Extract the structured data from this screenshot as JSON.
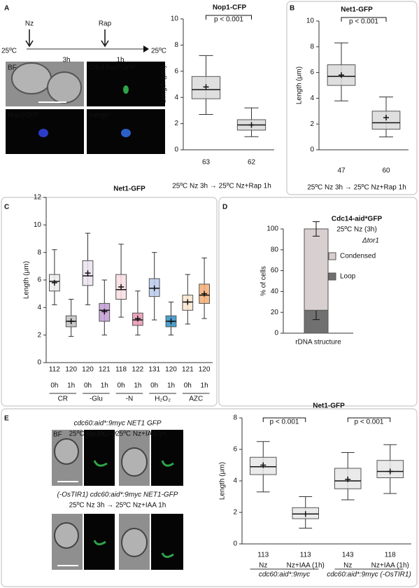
{
  "panels": {
    "letters": [
      "A",
      "B",
      "C",
      "D",
      "E"
    ],
    "a": {
      "timeline": [
        "Nz",
        "Rap",
        "25ºC",
        "3h",
        "1h",
        "25ºC"
      ],
      "tiles": [
        "BF",
        "Cdc14aid*GFP",
        "Nop1CFP",
        "merge"
      ]
    },
    "e": {
      "strain1": "cdc60:aid*:9myc NET1 GFP",
      "cond1": "25ºC Nz 3h → 25ºC Nz+IAA 1h",
      "tiles": [
        "BF",
        "Net1 GFP"
      ],
      "strain2": "(-OsTIR1) cdc60:aid*:9myc NET1-GFP",
      "cond2": "25ºC Nz 3h → 25ºC Nz+IAA 1h"
    }
  },
  "chart_data": [
    {
      "type": "box",
      "title": "Nop1-CFP",
      "title_color": "#3b8fc7",
      "ylabel": "Length (μm)",
      "xlabel": "25ºC Nz 3h → 25ºC Nz+Rap 1h",
      "ylim": [
        0,
        10
      ],
      "yticks": [
        0,
        2,
        4,
        6,
        8,
        10
      ],
      "color": "#d9d9d9",
      "boxes": [
        {
          "low": 2.7,
          "q1": 3.9,
          "median": 4.6,
          "q3": 5.6,
          "high": 7.2,
          "mean": 4.8
        },
        {
          "low": 1.0,
          "q1": 1.5,
          "median": 1.9,
          "q3": 2.3,
          "high": 3.2,
          "mean": 1.9
        }
      ],
      "n": [
        63,
        62
      ],
      "annotations": [
        "p < 0.001"
      ]
    },
    {
      "type": "box",
      "title": "Net1-GFP",
      "title_color": "#2ca02c",
      "ylabel": "Length (μm)",
      "xlabel": "25ºC Nz 3h → 25ºC Nz+Rap 1h",
      "ylim": [
        0,
        10
      ],
      "yticks": [
        0,
        2,
        4,
        6,
        8,
        10
      ],
      "color": "#d9d9d9",
      "boxes": [
        {
          "low": 3.8,
          "q1": 5.0,
          "median": 5.7,
          "q3": 6.6,
          "high": 8.3,
          "mean": 5.8
        },
        {
          "low": 1.0,
          "q1": 1.6,
          "median": 2.1,
          "q3": 3.0,
          "high": 4.1,
          "mean": 2.5
        }
      ],
      "n": [
        47,
        60
      ],
      "annotations": [
        "p < 0.001"
      ]
    },
    {
      "type": "box",
      "title": "Net1-GFP",
      "title_color": "#2ca02c",
      "ylabel": "Length (μm)",
      "ylim": [
        0,
        12
      ],
      "yticks": [
        0,
        2,
        4,
        6,
        8,
        10,
        12
      ],
      "colors": [
        "#ececec",
        "#bfbfbf",
        "#ebe3f0",
        "#c39bd3",
        "#f9dde2",
        "#e995b3",
        "#b7c9eb",
        "#2f8fc4",
        "#fde6cf",
        "#f4ad74"
      ],
      "boxes": [
        {
          "low": 4.2,
          "q1": 5.2,
          "median": 5.9,
          "q3": 6.4,
          "high": 8.2,
          "mean": 5.8
        },
        {
          "low": 1.9,
          "q1": 2.6,
          "median": 3.0,
          "q3": 3.4,
          "high": 4.6,
          "mean": 3.0
        },
        {
          "low": 4.2,
          "q1": 5.6,
          "median": 6.3,
          "q3": 7.4,
          "high": 9.4,
          "mean": 6.5
        },
        {
          "low": 2.0,
          "q1": 3.0,
          "median": 3.8,
          "q3": 4.3,
          "high": 6.0,
          "mean": 3.7
        },
        {
          "low": 3.3,
          "q1": 4.6,
          "median": 5.3,
          "q3": 6.4,
          "high": 8.6,
          "mean": 5.5
        },
        {
          "low": 2.0,
          "q1": 2.7,
          "median": 3.1,
          "q3": 3.6,
          "high": 5.2,
          "mean": 3.2
        },
        {
          "low": 3.1,
          "q1": 4.8,
          "median": 5.4,
          "q3": 6.1,
          "high": 8.0,
          "mean": 5.4
        },
        {
          "low": 2.0,
          "q1": 2.6,
          "median": 3.0,
          "q3": 3.4,
          "high": 4.4,
          "mean": 3.0
        },
        {
          "low": 2.8,
          "q1": 3.8,
          "median": 4.4,
          "q3": 4.9,
          "high": 6.4,
          "mean": 4.4
        },
        {
          "low": 3.2,
          "q1": 4.3,
          "median": 4.9,
          "q3": 5.7,
          "high": 7.6,
          "mean": 5.0
        }
      ],
      "n": [
        112,
        120,
        120,
        121,
        118,
        122,
        131,
        120,
        121,
        120
      ],
      "categories": [
        "0h",
        "1h",
        "0h",
        "1h",
        "0h",
        "1h",
        "0h",
        "1h",
        "0h",
        "1h"
      ],
      "groups": [
        "CR",
        "-Glu",
        "-N",
        "H₂O₂",
        "AZC"
      ]
    },
    {
      "type": "stacked",
      "ylabel": "% of cells",
      "xlabel": "rDNA structure",
      "ylim": [
        0,
        100
      ],
      "yticks": [
        0,
        20,
        40,
        60,
        80,
        100
      ],
      "annotations": [
        "Cdc14-aid*GFP",
        "25ºC Nz (3h)",
        "Δtor1"
      ],
      "series": [
        {
          "name": "Loop",
          "color": "#707070",
          "values": [
            22
          ],
          "errors": [
            9
          ]
        },
        {
          "name": "Condensed",
          "color": "#d8d0d0",
          "values": [
            78
          ],
          "errors": [
            7
          ]
        }
      ]
    },
    {
      "type": "box",
      "title": "Net1-GFP",
      "title_color": "#2ca02c",
      "ylabel": "Length (μm)",
      "ylim": [
        0,
        8
      ],
      "yticks": [
        0,
        2,
        4,
        6,
        8
      ],
      "color": "#e6e6e6",
      "boxes": [
        {
          "low": 3.3,
          "q1": 4.4,
          "median": 4.9,
          "q3": 5.5,
          "high": 6.5,
          "mean": 5.0
        },
        {
          "low": 1.0,
          "q1": 1.6,
          "median": 1.9,
          "q3": 2.3,
          "high": 3.0,
          "mean": 1.9
        },
        {
          "low": 2.8,
          "q1": 3.5,
          "median": 4.0,
          "q3": 4.8,
          "high": 5.8,
          "mean": 4.1
        },
        {
          "low": 3.2,
          "q1": 4.2,
          "median": 4.6,
          "q3": 5.3,
          "high": 6.3,
          "mean": 4.6
        }
      ],
      "n": [
        113,
        113,
        143,
        118
      ],
      "categories": [
        "Nz",
        "Nz+IAA (1h)",
        "Nz",
        "Nz+IAA (1h)"
      ],
      "groups": [
        "cdc60:aid*:9myc",
        "cdc60:aid*:9myc (-OsTIR1)"
      ],
      "annotations": [
        "p < 0.001",
        "p < 0.001"
      ]
    }
  ]
}
